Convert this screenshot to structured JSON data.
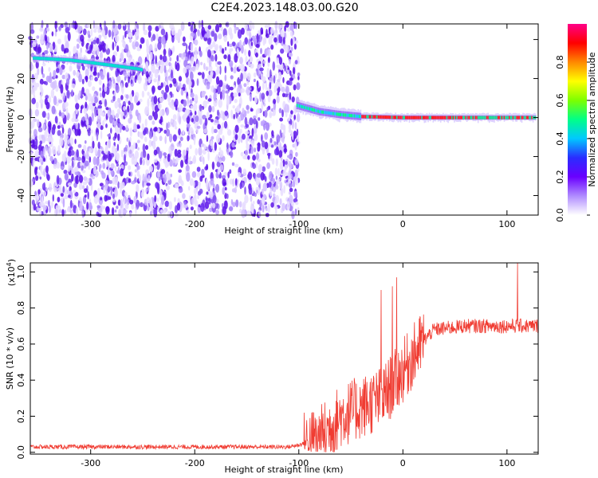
{
  "title": "C2E4.2023.148.03.00.G20",
  "chart_data": [
    {
      "type": "heatmap",
      "xlabel": "Height of straight line (km)",
      "ylabel": "Frequency (Hz)",
      "xlim": [
        -358,
        130
      ],
      "ylim": [
        -50,
        48
      ],
      "xticks": [
        "-300",
        "-200",
        "-100",
        "0",
        "100"
      ],
      "yticks": [
        "40",
        "20",
        "0",
        "-20",
        "-40"
      ],
      "noise_region": [
        -358,
        -100
      ],
      "signal_track": [
        {
          "x": -355,
          "y": 30.5
        },
        {
          "x": -320,
          "y": 29.5
        },
        {
          "x": -290,
          "y": 27.5
        },
        {
          "x": -255,
          "y": 25.0
        },
        {
          "x": -100,
          "y": 6.0
        },
        {
          "x": -80,
          "y": 3.0
        },
        {
          "x": -60,
          "y": 1.5
        },
        {
          "x": -40,
          "y": 0.5
        },
        {
          "x": 0,
          "y": 0.0
        },
        {
          "x": 130,
          "y": 0.0
        }
      ],
      "colorbar": {
        "label": "Normalized spectral amplitude",
        "ticks": [
          "0.0",
          "0.2",
          "0.4",
          "0.6",
          "0.8"
        ],
        "range": [
          0,
          1
        ],
        "colors": [
          "#ffffff",
          "#b08cff",
          "#6a00ff",
          "#2a2cff",
          "#00c8ff",
          "#00ff88",
          "#7dff00",
          "#ffff00",
          "#ff8800",
          "#ff0000",
          "#ff0088"
        ]
      }
    },
    {
      "type": "line",
      "xlabel": "Height of straight line (km)",
      "ylabel": "SNR (10 * v/v)",
      "scale_label": "(x10",
      "scale_exp": "4",
      "scale_close": ")",
      "xlim": [
        -358,
        130
      ],
      "ylim": [
        -0.01,
        1.05
      ],
      "xticks": [
        "-300",
        "-200",
        "-100",
        "0",
        "100"
      ],
      "yticks": [
        "1.0",
        "0.8",
        "0.6",
        "0.4",
        "0.2",
        "0.0"
      ],
      "line_color": "#f03c32",
      "envelope": [
        {
          "x": -358,
          "y": 0.03
        },
        {
          "x": -110,
          "y": 0.03
        },
        {
          "x": -100,
          "y": 0.04
        },
        {
          "x": -80,
          "y": 0.08
        },
        {
          "x": -60,
          "y": 0.2
        },
        {
          "x": -40,
          "y": 0.25
        },
        {
          "x": -20,
          "y": 0.3
        },
        {
          "x": 0,
          "y": 0.45
        },
        {
          "x": 20,
          "y": 0.62
        },
        {
          "x": 30,
          "y": 0.68
        },
        {
          "x": 60,
          "y": 0.7
        },
        {
          "x": 130,
          "y": 0.7
        }
      ],
      "spikes": [
        {
          "x": -21,
          "y": 0.9
        },
        {
          "x": -10,
          "y": 0.92
        },
        {
          "x": -6,
          "y": 0.97
        },
        {
          "x": 110,
          "y": 1.05
        }
      ]
    }
  ]
}
